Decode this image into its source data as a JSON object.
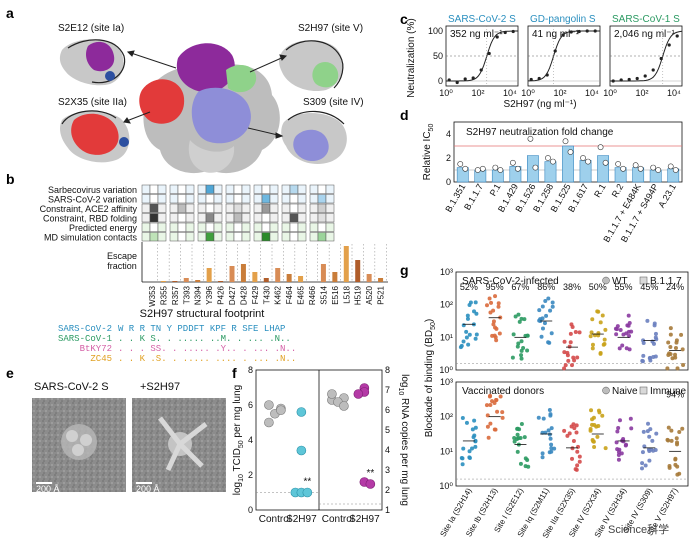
{
  "panels": {
    "a": {
      "label": "a",
      "sites": [
        {
          "name": "S2E12 (site Ia)"
        },
        {
          "name": "S2H97 (site V)"
        },
        {
          "name": "S2X35 (site IIa)"
        },
        {
          "name": "S309 (site IV)"
        }
      ]
    },
    "b": {
      "label": "b",
      "row_labels": [
        "Sarbecovirus variation",
        "SARS-CoV-2 variation",
        "Constraint, ACE2 affinity",
        "Constraint, RBD folding",
        "Predicted energy",
        "MD simulation contacts"
      ],
      "escape_ylabel": "Escape\nfraction",
      "escape_ylabel_lines": [
        "Escape",
        "fraction"
      ],
      "sites": [
        "W353",
        "R355",
        "R357",
        "T393",
        "N394",
        "Y396",
        "P426",
        "D427",
        "D428",
        "F429",
        "T430",
        "K462",
        "F464",
        "E465",
        "R466",
        "S514",
        "E516",
        "L518",
        "H519",
        "A520",
        "P521"
      ],
      "footprint_title": "S2H97 structural footprint",
      "alignment": [
        {
          "name": "SARS-CoV-2",
          "seq": "W R R TN Y PDDFT KPF R SFE LHAP",
          "color": "#2a8fbf"
        },
        {
          "name": "SARS-CoV-1",
          "seq": ". . K S. . ..... ..M. . ... .N..",
          "color": "#2b9a62"
        },
        {
          "name": "BtKY72",
          "seq": ". . . SS. . ..... .Y.. . ... .N..",
          "color": "#d45fa6"
        },
        {
          "name": "ZC45",
          "seq": ". . K .S. . ..... .... . ... .N..",
          "color": "#e0a020"
        }
      ]
    },
    "c": {
      "label": "c",
      "ylabel": "Neutralization (%)",
      "xlabel": "S2H97 (ng ml⁻¹)",
      "chart_data": [
        {
          "type": "line",
          "title": "SARS-CoV-2 S",
          "ic50": "352 ng ml⁻¹",
          "x_ticks": [
            "10⁰",
            "10²",
            "10⁴"
          ],
          "y_ticks": [
            "0",
            "50",
            "100"
          ],
          "ylim": [
            -10,
            110
          ],
          "x_log": [
            0,
            4.5
          ],
          "ic50_log": 2.55,
          "points": [
            [
              0.2,
              2
            ],
            [
              0.7,
              -3
            ],
            [
              1.2,
              4
            ],
            [
              1.7,
              6
            ],
            [
              2.2,
              22
            ],
            [
              2.7,
              55
            ],
            [
              3.2,
              88
            ],
            [
              3.7,
              97
            ],
            [
              4.2,
              99
            ]
          ]
        },
        {
          "type": "line",
          "title": "GD-pangolin S",
          "ic50": "41 ng ml⁻¹",
          "x_ticks": [
            "10⁰",
            "10²",
            "10⁴"
          ],
          "y_ticks": [
            "0",
            "50",
            "100"
          ],
          "ylim": [
            -10,
            110
          ],
          "x_log": [
            0,
            4.5
          ],
          "ic50_log": 1.6,
          "points": [
            [
              0.2,
              3
            ],
            [
              0.7,
              5
            ],
            [
              1.2,
              12
            ],
            [
              1.7,
              60
            ],
            [
              2.2,
              92
            ],
            [
              2.7,
              98
            ],
            [
              3.2,
              99
            ],
            [
              3.7,
              100
            ],
            [
              4.2,
              100
            ]
          ]
        },
        {
          "type": "line",
          "title": "SARS-CoV-1 S",
          "ic50": "2,046 ng ml⁻¹",
          "x_ticks": [
            "10⁰",
            "10²",
            "10⁴"
          ],
          "y_ticks": [
            "0",
            "50",
            "100"
          ],
          "ylim": [
            -10,
            110
          ],
          "x_log": [
            0,
            4.5
          ],
          "ic50_log": 3.3,
          "points": [
            [
              0.2,
              0
            ],
            [
              0.7,
              2
            ],
            [
              1.2,
              3
            ],
            [
              1.7,
              5
            ],
            [
              2.2,
              10
            ],
            [
              2.7,
              22
            ],
            [
              3.2,
              45
            ],
            [
              3.7,
              72
            ],
            [
              4.2,
              90
            ]
          ]
        }
      ]
    },
    "d": {
      "label": "d",
      "chart_data": {
        "type": "bar",
        "title": "S2H97 neutralization fold change",
        "ylabel": "Relative IC50",
        "ylabel_parts": [
          "Relative IC",
          "50"
        ],
        "categories": [
          "B.1.351",
          "B.1.1.7",
          "P.1",
          "B.1.429",
          "B.1.526",
          "B.1.258",
          "B.1.525",
          "B.1.617",
          "R.1",
          "R.2",
          "B.1.1.7 + E484K",
          "B.1.1.7 + S494P",
          "A.23.1"
        ],
        "values": [
          1.2,
          1.0,
          1.0,
          1.3,
          2.2,
          1.7,
          3.0,
          1.8,
          2.2,
          1.2,
          1.2,
          1.0,
          1.1
        ],
        "points": [
          [
            1.5,
            1.1
          ],
          [
            1.0,
            1.1
          ],
          [
            1.2,
            1.0
          ],
          [
            1.6,
            1.1
          ],
          [
            3.6,
            1.2
          ],
          [
            2.0,
            1.7
          ],
          [
            3.4,
            2.5
          ],
          [
            2.0,
            1.7
          ],
          [
            2.9,
            1.6
          ],
          [
            1.5,
            1.1
          ],
          [
            1.4,
            1.1
          ],
          [
            1.2,
            1.0
          ],
          [
            1.3,
            1.0
          ]
        ],
        "yticks": [
          "0",
          "2",
          "4"
        ],
        "ylim": [
          0,
          5
        ],
        "reference_line": 3
      }
    },
    "e": {
      "label": "e",
      "images": [
        {
          "title": "SARS-CoV-2 S",
          "scale": "200 Å"
        },
        {
          "title": "+S2H97",
          "scale": "200 Å"
        }
      ]
    },
    "f": {
      "label": "f",
      "chart_data": {
        "type": "scatter",
        "left_ylabel": "log10 TCID50 per mg lung",
        "left_ylabel_parts": [
          "log",
          "10",
          " TCID",
          "50",
          " per mg lung"
        ],
        "right_ylabel": "log10 RNA copies per mg lung",
        "right_ylabel_parts": [
          "log",
          "10",
          " RNA copies per mg lung"
        ],
        "categories": [
          "Control",
          "S2H97"
        ],
        "left_yticks": [
          "0",
          "2",
          "4",
          "6",
          "8"
        ],
        "right_yticks": [
          "1",
          "2",
          "3",
          "4",
          "5",
          "6",
          "7",
          "8"
        ],
        "tcid50": {
          "Control": [
            6.0,
            5.8,
            5.5,
            5.0,
            5.7
          ],
          "S2H97": [
            5.6,
            3.4,
            1.0,
            1.0,
            1.0
          ]
        },
        "rna": {
          "Control": [
            6.5,
            6.6,
            6.4,
            6.8,
            6.2
          ],
          "S2H97": [
            7.1,
            6.9,
            6.8,
            2.4,
            2.3
          ]
        },
        "significance": [
          "**",
          "**"
        ],
        "limit_of_detection": 1.0
      }
    },
    "g": {
      "label": "g",
      "ylabel": "Blockade of binding (BD50)",
      "ylabel_parts": [
        "Blockade of binding (BD",
        "50",
        ")"
      ],
      "top": {
        "title": "SARS-CoV-2-infected",
        "legend": [
          "WT",
          "B.1.1.7"
        ],
        "percents": [
          "52%",
          "95%",
          "67%",
          "86%",
          "38%",
          "50%",
          "55%",
          "45%",
          "24%"
        ]
      },
      "bottom": {
        "title": "Vaccinated donors",
        "legend": [
          "Naive",
          "Immune"
        ],
        "percents": [
          "",
          "",
          "",
          "",
          "",
          "",
          "",
          "",
          "94%"
        ]
      },
      "yticks": [
        "10⁰",
        "10¹",
        "10²",
        "10³"
      ],
      "categories": [
        "Site Ia (S2H14)",
        "Site Ib (S2H13)",
        "Site I (S2E12)",
        "Site Iq (S2M11)",
        "Site IIa (S2X35)",
        "Site IV (S2X34)",
        "Site IV (S2H34)",
        "Site IV (S309)",
        "Site V (S2H97)"
      ],
      "colors": [
        "#2a8fbf",
        "#d96a3c",
        "#2b9a62",
        "#3a88c0",
        "#d44a4a",
        "#c9a21a",
        "#8a3aa0",
        "#6a7fbf",
        "#a67a3a"
      ]
    }
  },
  "watermark": "Science科学"
}
